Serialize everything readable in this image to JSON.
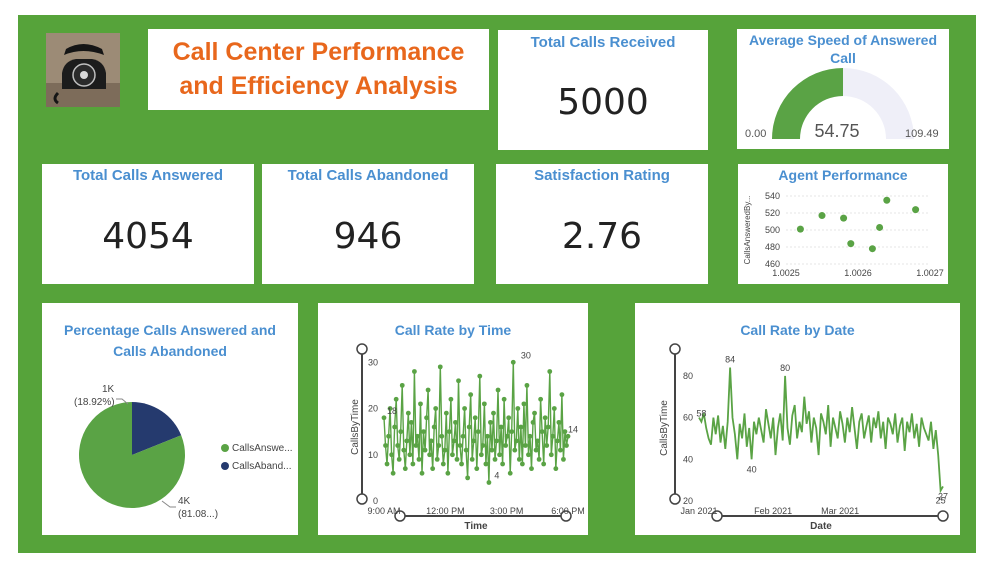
{
  "header": {
    "title_line1": "Call Center Performance",
    "title_line2": "and Efficiency Analysis",
    "logo_icon": "telephone-icon"
  },
  "kpis": {
    "total_calls_received": {
      "label": "Total Calls Received",
      "value": "5000"
    },
    "total_calls_answered": {
      "label": "Total Calls Answered",
      "value": "4054"
    },
    "total_calls_abandoned": {
      "label": "Total Calls Abandoned",
      "value": "946"
    },
    "satisfaction_rating": {
      "label": "Satisfaction Rating",
      "value": "2.76"
    }
  },
  "gauge": {
    "title": "Average Speed of Answered Call",
    "min_label": "0.00",
    "max_label": "109.49",
    "value_label": "54.75",
    "value": 54.75,
    "min": 0,
    "max": 109.49
  },
  "colors": {
    "background": "#56a33a",
    "title_orange": "#e8671c",
    "card_title_blue": "#4a8fd0",
    "series_green": "#5aa345",
    "series_navy": "#253a6e",
    "gauge_track": "#efeff8"
  },
  "legend": {
    "answered": "CallsAnswe...",
    "abandoned": "CallsAband..."
  },
  "pie_labels": {
    "abandoned_count": "1K",
    "abandoned_pct": "(18.92%)",
    "answered_count": "4K",
    "answered_pct": "(81.08...)"
  },
  "chart_data": [
    {
      "type": "scatter",
      "title": "Agent Performance",
      "ylabel": "CallsAnsweredBy...",
      "x_ticks": [
        "1.0025",
        "1.0026",
        "1.0027"
      ],
      "y_ticks": [
        "540",
        "520",
        "500",
        "480",
        "460"
      ],
      "xlim": [
        1.0025,
        1.0027
      ],
      "ylim": [
        460,
        540
      ],
      "points": [
        {
          "x": 1.00252,
          "y": 501
        },
        {
          "x": 1.00255,
          "y": 517
        },
        {
          "x": 1.00258,
          "y": 514
        },
        {
          "x": 1.00259,
          "y": 484
        },
        {
          "x": 1.00262,
          "y": 478
        },
        {
          "x": 1.00263,
          "y": 503
        },
        {
          "x": 1.00264,
          "y": 535
        },
        {
          "x": 1.00268,
          "y": 524
        }
      ]
    },
    {
      "type": "pie",
      "title": "Percentage Calls Answered and Calls Abandoned",
      "legend_position": "right",
      "slices": [
        {
          "name": "CallsAnswered",
          "value": 81.08,
          "color": "#5aa345"
        },
        {
          "name": "CallsAbandoned",
          "value": 18.92,
          "color": "#253a6e"
        }
      ]
    },
    {
      "type": "line",
      "title": "Call Rate by Time",
      "xlabel": "Time",
      "ylabel": "CallsByTime",
      "x_ticks": [
        "9:00 AM",
        "12:00 PM",
        "3:00 PM",
        "6:00 PM"
      ],
      "y_ticks": [
        "0",
        "10",
        "20",
        "30"
      ],
      "ylim": [
        0,
        32
      ],
      "xlim_hours": [
        9,
        18
      ],
      "annotations": [
        {
          "x_hour": 9.05,
          "y": 18,
          "text": "18"
        },
        {
          "x_hour": 14.3,
          "y": 4,
          "text": "4"
        },
        {
          "x_hour": 15.6,
          "y": 30,
          "text": "30"
        },
        {
          "x_hour": 17.9,
          "y": 14,
          "text": "14"
        }
      ],
      "series": [
        {
          "values": [
            18,
            12,
            8,
            14,
            20,
            10,
            6,
            16,
            22,
            12,
            9,
            15,
            25,
            11,
            7,
            13,
            19,
            10,
            17,
            8,
            28,
            12,
            14,
            9,
            21,
            6,
            15,
            11,
            18,
            24,
            10,
            13,
            7,
            16,
            20,
            9,
            12,
            29,
            14,
            8,
            11,
            19,
            6,
            15,
            22,
            10,
            13,
            17,
            9,
            26,
            12,
            8,
            14,
            20,
            11,
            5,
            16,
            23,
            9,
            13,
            18,
            7,
            15,
            27,
            10,
            12,
            21,
            8,
            14,
            4,
            17,
            11,
            19,
            9,
            13,
            24,
            10,
            16,
            8,
            22,
            12,
            14,
            18,
            6,
            15,
            30,
            11,
            13,
            20,
            9,
            16,
            8,
            21,
            12,
            25,
            10,
            14,
            7,
            17,
            19,
            11,
            13,
            9,
            22,
            15,
            8,
            18,
            12,
            16,
            28,
            10,
            14,
            20,
            7,
            13,
            17,
            11,
            23,
            9,
            15,
            12,
            14
          ]
        }
      ]
    },
    {
      "type": "line",
      "title": "Call Rate by Date",
      "xlabel": "Date",
      "ylabel": "CallsByTime",
      "x_ticks": [
        "Jan 2021",
        "Feb 2021",
        "Mar 2021"
      ],
      "y_ticks": [
        "20",
        "40",
        "60",
        "80"
      ],
      "ylim": [
        20,
        90
      ],
      "annotations": [
        {
          "index": 1,
          "text": "58"
        },
        {
          "index": 13,
          "text": "84"
        },
        {
          "index": 22,
          "text": "40"
        },
        {
          "index": 36,
          "text": "80"
        },
        {
          "index": 101,
          "text": "25"
        },
        {
          "index": 102,
          "text": "27"
        }
      ],
      "series": [
        {
          "values": [
            60,
            58,
            62,
            55,
            50,
            47,
            60,
            52,
            61,
            48,
            56,
            45,
            58,
            84,
            60,
            52,
            40,
            57,
            50,
            62,
            46,
            55,
            40,
            58,
            52,
            60,
            54,
            48,
            64,
            57,
            50,
            60,
            42,
            55,
            62,
            49,
            80,
            55,
            47,
            61,
            66,
            50,
            58,
            53,
            70,
            57,
            63,
            48,
            60,
            55,
            42,
            62,
            58,
            52,
            66,
            46,
            60,
            55,
            50,
            63,
            57,
            48,
            60,
            53,
            65,
            55,
            45,
            58,
            62,
            50,
            56,
            61,
            48,
            60,
            55,
            63,
            50,
            58,
            45,
            60,
            57,
            52,
            62,
            48,
            56,
            60,
            44,
            58,
            53,
            62,
            50,
            57,
            46,
            60,
            55,
            52,
            49,
            58,
            45,
            54,
            42,
            25,
            27
          ]
        }
      ]
    }
  ]
}
